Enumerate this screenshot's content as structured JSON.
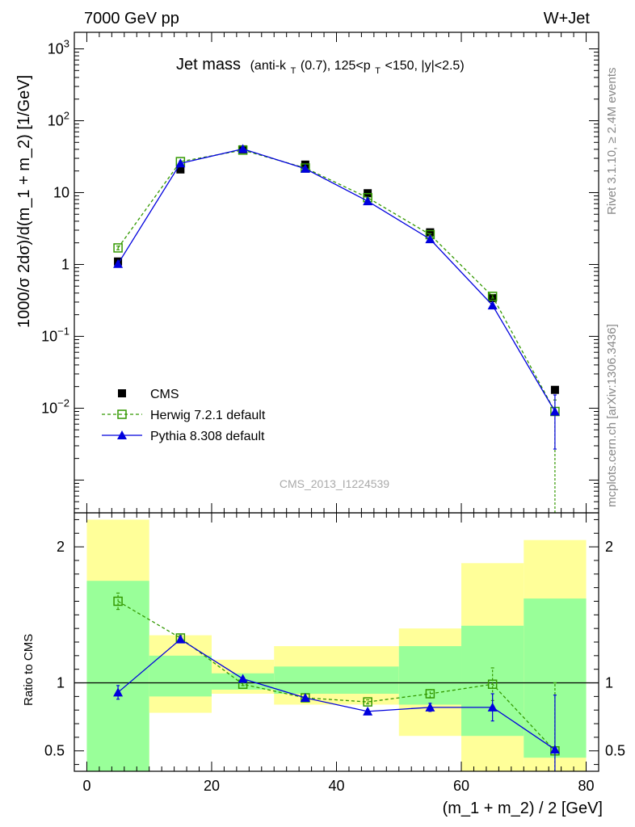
{
  "header": {
    "energy_label": "7000 GeV pp",
    "process_label": "W+Jet",
    "side_label_top": "Rivet 3.1.10, ≥ 2.4M events",
    "side_label_bottom": "mcplots.cern.ch [arXiv:1306.3436]",
    "watermark": "CMS_2013_I1224539"
  },
  "chart_data": [
    {
      "type": "line",
      "panel": "main",
      "title_main": "Jet mass",
      "title_sub_parts": [
        "(anti-k",
        "T",
        "(0.7), 125<p",
        "T",
        "<150, |y|<2.5)"
      ],
      "ylabel": "1000/σ 2dσ)/d(m_1 + m_2) [1/GeV]",
      "yscale": "log",
      "ylim": [
        0.00035,
        1700
      ],
      "xlim": [
        -2,
        82
      ],
      "y_ticks": [
        {
          "v": 0.01,
          "base": "10",
          "exp": "−2"
        },
        {
          "v": 0.1,
          "base": "10",
          "exp": "−1"
        },
        {
          "v": 1,
          "base": "1",
          "exp": ""
        },
        {
          "v": 10,
          "base": "10",
          "exp": ""
        },
        {
          "v": 100,
          "base": "10",
          "exp": "2"
        },
        {
          "v": 1000,
          "base": "10",
          "exp": "3"
        }
      ],
      "x": [
        5,
        15,
        25,
        35,
        45,
        55,
        65,
        75
      ],
      "series": [
        {
          "name": "CMS",
          "color": "#000000",
          "marker": "square",
          "values": [
            1.1,
            21.0,
            40.0,
            24.5,
            9.8,
            2.8,
            0.34,
            0.018
          ]
        },
        {
          "name": "Herwig 7.2.1 default",
          "color": "#339900",
          "marker": "open-square",
          "dashed": true,
          "values": [
            1.7,
            27.0,
            39.0,
            22.0,
            8.5,
            2.6,
            0.36,
            0.009
          ],
          "err_lo": [
            0.1,
            0.5,
            0.5,
            0.3,
            0.15,
            0.08,
            0.02,
            0.009
          ],
          "err_hi": [
            0.1,
            0.5,
            0.5,
            0.3,
            0.15,
            0.08,
            0.02,
            0.004
          ]
        },
        {
          "name": "Pythia 8.308 default",
          "color": "#0000dd",
          "marker": "triangle",
          "values": [
            1.02,
            25.5,
            40.5,
            21.5,
            7.6,
            2.25,
            0.27,
            0.009
          ],
          "err_lo": [
            0.05,
            0.4,
            0.5,
            0.3,
            0.12,
            0.06,
            0.015,
            0.0063
          ],
          "err_hi": [
            0.05,
            0.4,
            0.5,
            0.3,
            0.12,
            0.06,
            0.015,
            0.0063
          ]
        }
      ]
    },
    {
      "type": "line",
      "panel": "ratio",
      "ylabel": "Ratio to CMS",
      "ylim": [
        0.35,
        2.25
      ],
      "xlim": [
        -2,
        82
      ],
      "xlabel": "(m_1 + m_2) / 2 [GeV]",
      "x_ticks": [
        0,
        20,
        40,
        60,
        80
      ],
      "y_ticks": [
        0.5,
        1,
        2
      ],
      "reference": 1,
      "bins": [
        [
          0,
          10
        ],
        [
          10,
          20
        ],
        [
          20,
          30
        ],
        [
          30,
          40
        ],
        [
          40,
          50
        ],
        [
          50,
          60
        ],
        [
          60,
          70
        ],
        [
          70,
          80
        ]
      ],
      "band_stat_sys_outer": [
        [
          0.35,
          2.2
        ],
        [
          0.78,
          1.35
        ],
        [
          0.92,
          1.17
        ],
        [
          0.84,
          1.27
        ],
        [
          0.84,
          1.27
        ],
        [
          0.61,
          1.4
        ],
        [
          0.35,
          1.88
        ],
        [
          0.35,
          2.05
        ]
      ],
      "band_stat_inner": [
        [
          0.35,
          1.75
        ],
        [
          0.9,
          1.2
        ],
        [
          0.95,
          1.07
        ],
        [
          0.92,
          1.12
        ],
        [
          0.92,
          1.12
        ],
        [
          0.84,
          1.27
        ],
        [
          0.61,
          1.42
        ],
        [
          0.45,
          1.62
        ]
      ],
      "band_outer_color": "#ffff99",
      "band_inner_color": "#99ff99",
      "x": [
        5,
        15,
        25,
        35,
        45,
        55,
        65,
        75
      ],
      "series": [
        {
          "name": "Herwig 7.2.1 default",
          "color": "#339900",
          "marker": "open-square",
          "dashed": true,
          "values": [
            1.6,
            1.33,
            0.99,
            0.89,
            0.86,
            0.92,
            0.99,
            0.5
          ],
          "err_lo": [
            0.06,
            0.02,
            0.01,
            0.01,
            0.015,
            0.03,
            0.12,
            0.15
          ],
          "err_hi": [
            0.06,
            0.02,
            0.01,
            0.01,
            0.015,
            0.03,
            0.12,
            0.5
          ]
        },
        {
          "name": "Pythia 8.308 default",
          "color": "#0000dd",
          "marker": "triangle",
          "values": [
            0.93,
            1.32,
            1.03,
            0.89,
            0.79,
            0.82,
            0.82,
            0.51
          ],
          "err_lo": [
            0.05,
            0.02,
            0.01,
            0.01,
            0.015,
            0.03,
            0.1,
            0.16
          ],
          "err_hi": [
            0.05,
            0.02,
            0.01,
            0.01,
            0.015,
            0.03,
            0.1,
            0.4
          ]
        }
      ]
    }
  ]
}
